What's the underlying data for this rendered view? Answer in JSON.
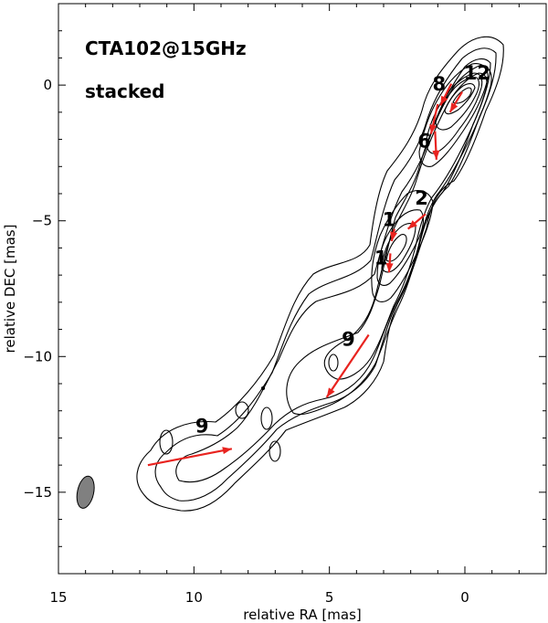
{
  "chart_data": {
    "type": "contour",
    "title": "",
    "annotations": [
      "CTA102@15GHz",
      "stacked"
    ],
    "xlabel": "relative RA [mas]",
    "ylabel": "relative DEC [mas]",
    "xlim": [
      15,
      -3
    ],
    "ylim": [
      -18,
      3
    ],
    "x_ticks": [
      15,
      10,
      5,
      0
    ],
    "y_ticks": [
      0,
      -5,
      -10,
      -15
    ],
    "vector_color": "#e8231f",
    "beam": {
      "ra": 14.0,
      "dec": -15.0,
      "rx": 0.3,
      "ry": 0.6,
      "color": "#808080"
    },
    "vectors": [
      {
        "label": "12",
        "from": [
          0.1,
          -0.25
        ],
        "to": [
          0.55,
          -1.0
        ],
        "label_at": [
          -0.45,
          0.2
        ]
      },
      {
        "label": "8",
        "from": [
          0.5,
          0.05
        ],
        "to": [
          0.9,
          -0.75
        ],
        "label_at": [
          0.95,
          -0.2
        ]
      },
      {
        "label": "8",
        "from": [
          1.0,
          -0.7
        ],
        "to": [
          1.25,
          -1.8
        ],
        "label_at": [
          0.95,
          -0.2
        ]
      },
      {
        "label": "6",
        "from": [
          1.1,
          -1.7
        ],
        "to": [
          1.05,
          -2.75
        ],
        "label_at": [
          1.5,
          -2.3
        ]
      },
      {
        "label": "2",
        "from": [
          1.45,
          -4.75
        ],
        "to": [
          2.1,
          -5.3
        ],
        "label_at": [
          1.6,
          -4.4
        ]
      },
      {
        "label": "1",
        "from": [
          2.6,
          -5.3
        ],
        "to": [
          2.7,
          -5.75
        ],
        "label_at": [
          2.8,
          -5.2
        ]
      },
      {
        "label": "1",
        "from": [
          2.75,
          -6.2
        ],
        "to": [
          2.8,
          -6.9
        ],
        "label_at": [
          3.1,
          -6.6
        ]
      },
      {
        "label": "9",
        "from": [
          3.55,
          -9.2
        ],
        "to": [
          5.1,
          -11.5
        ],
        "label_at": [
          4.3,
          -9.6
        ]
      },
      {
        "label": "9",
        "from": [
          11.7,
          -14.0
        ],
        "to": [
          8.6,
          -13.4
        ],
        "label_at": [
          9.7,
          -12.8
        ]
      }
    ]
  }
}
